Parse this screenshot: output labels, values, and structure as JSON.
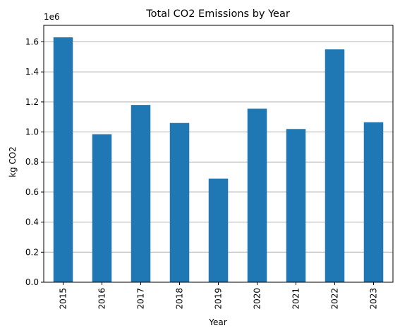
{
  "chart_data": {
    "type": "bar",
    "title": "Total CO2 Emissions by Year",
    "xlabel": "Year",
    "ylabel": "kg CO2",
    "y_scale_label": "1e6",
    "categories": [
      "2015",
      "2016",
      "2017",
      "2018",
      "2019",
      "2020",
      "2021",
      "2022",
      "2023"
    ],
    "series": [
      {
        "values": [
          1630000,
          985000,
          1180000,
          1060000,
          690000,
          1155000,
          1020000,
          1550000,
          1065000
        ]
      }
    ],
    "ylim": [
      0,
      1710000
    ],
    "yticks": [
      0,
      200000,
      400000,
      600000,
      800000,
      1000000,
      1200000,
      1400000,
      1600000
    ],
    "ytick_labels": [
      "0.0",
      "0.2",
      "0.4",
      "0.6",
      "0.8",
      "1.0",
      "1.2",
      "1.4",
      "1.6"
    ],
    "grid": "horizontal",
    "colors": {
      "bar": "#1f77b4",
      "grid": "#b0b0b0",
      "axis": "#000000"
    }
  }
}
